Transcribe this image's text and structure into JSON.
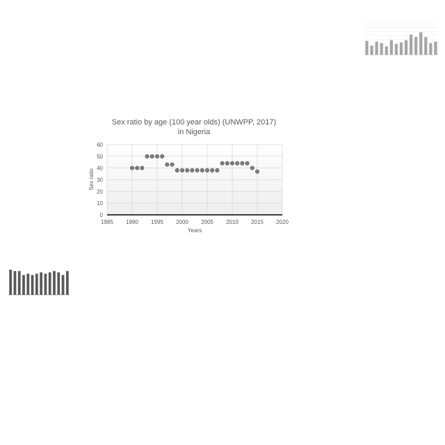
{
  "chart_data": [
    {
      "type": "scatter",
      "title_line1": "Sex ratio by age (100 year olds) (UNWPP, 2017)",
      "title_line2": "in Nigeria",
      "xlabel": "Years",
      "ylabel": "Sex ratio",
      "xlim": [
        1985,
        2020
      ],
      "ylim": [
        0,
        60
      ],
      "xticks": [
        1985,
        1990,
        1995,
        2000,
        2005,
        2010,
        2015,
        2020
      ],
      "yticks": [
        0,
        10,
        20,
        30,
        40,
        50,
        60
      ],
      "grid": true,
      "legend": "none",
      "points": [
        {
          "x": 1990,
          "y": 40
        },
        {
          "x": 1991,
          "y": 40
        },
        {
          "x": 1992,
          "y": 40
        },
        {
          "x": 1993,
          "y": 50
        },
        {
          "x": 1994,
          "y": 50
        },
        {
          "x": 1995,
          "y": 50
        },
        {
          "x": 1996,
          "y": 50
        },
        {
          "x": 1997,
          "y": 43
        },
        {
          "x": 1998,
          "y": 43
        },
        {
          "x": 1999,
          "y": 38
        },
        {
          "x": 2000,
          "y": 38
        },
        {
          "x": 2001,
          "y": 38
        },
        {
          "x": 2002,
          "y": 38
        },
        {
          "x": 2003,
          "y": 38
        },
        {
          "x": 2004,
          "y": 38
        },
        {
          "x": 2005,
          "y": 38
        },
        {
          "x": 2006,
          "y": 38
        },
        {
          "x": 2007,
          "y": 38
        },
        {
          "x": 2008,
          "y": 44
        },
        {
          "x": 2009,
          "y": 44
        },
        {
          "x": 2010,
          "y": 44
        },
        {
          "x": 2011,
          "y": 44
        },
        {
          "x": 2012,
          "y": 44
        },
        {
          "x": 2013,
          "y": 44
        },
        {
          "x": 2014,
          "y": 40
        },
        {
          "x": 2015,
          "y": 37
        }
      ]
    },
    {
      "type": "bar",
      "title": "",
      "ylim": [
        0,
        40
      ],
      "yticks": [
        0,
        5,
        10,
        15,
        20,
        25,
        30,
        35,
        40
      ],
      "values": [
        18,
        12,
        17,
        15,
        11,
        19,
        14,
        16,
        19,
        26,
        23,
        29,
        23,
        15,
        17
      ]
    },
    {
      "type": "bar",
      "title": "",
      "ylim": [
        0,
        10
      ],
      "yticks": [
        0,
        2,
        4,
        6,
        8,
        10
      ],
      "values": [
        9.5,
        9,
        9,
        7.5,
        8,
        7.5,
        8,
        8.5,
        8,
        8.5,
        9,
        8.5,
        7.5,
        9
      ]
    }
  ],
  "colors": {
    "marker_fill": "#7f7f7f",
    "gridline": "#d9d9d9",
    "plot_background": "#f2f2f2",
    "bar_dark": "#595959",
    "bar_light": "#a6a6a6"
  }
}
